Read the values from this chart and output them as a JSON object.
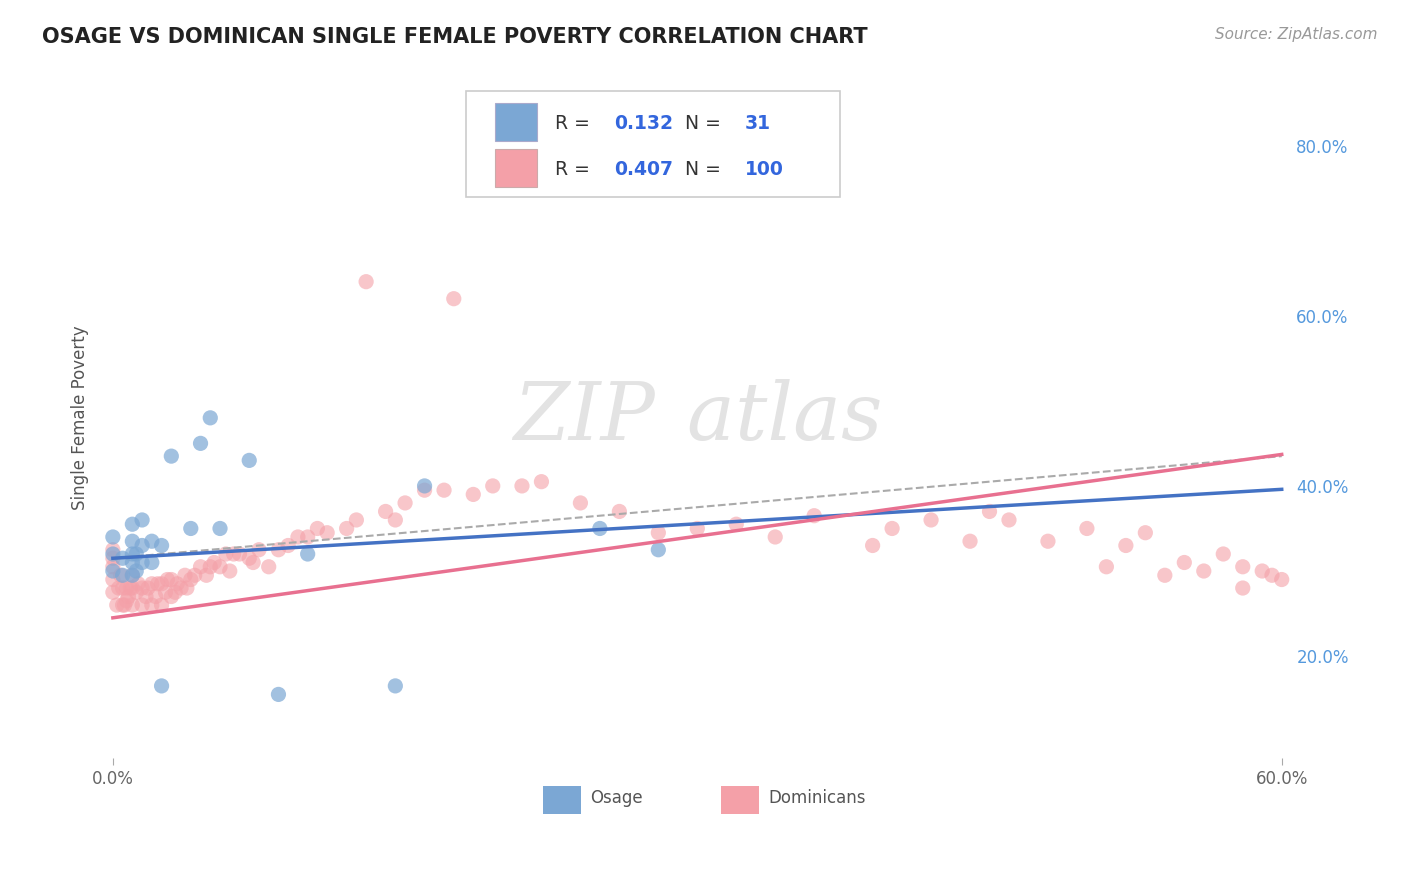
{
  "title": "OSAGE VS DOMINICAN SINGLE FEMALE POVERTY CORRELATION CHART",
  "source_text": "Source: ZipAtlas.com",
  "ylabel": "Single Female Poverty",
  "xlim": [
    -0.005,
    0.605
  ],
  "ylim": [
    0.08,
    0.88
  ],
  "yticks_right": [
    0.2,
    0.4,
    0.6,
    0.8
  ],
  "yticklabels_right": [
    "20.0%",
    "40.0%",
    "60.0%",
    "80.0%"
  ],
  "osage_color": "#7BA7D4",
  "dominican_color": "#F4A0A8",
  "background_color": "#FFFFFF",
  "grid_color": "#CCCCCC",
  "osage_R": 0.132,
  "osage_N": 31,
  "dominican_R": 0.407,
  "dominican_N": 100,
  "osage_line_intercept": 0.315,
  "osage_line_slope": 0.135,
  "dominican_line_intercept": 0.245,
  "dominican_line_slope": 0.32,
  "dashed_line_intercept": 0.315,
  "dashed_line_slope": 0.2,
  "trend_blue": "#4472C4",
  "trend_pink": "#E87090",
  "trend_dash": "#AAAAAA",
  "osage_x": [
    0.0,
    0.0,
    0.0,
    0.005,
    0.005,
    0.01,
    0.01,
    0.01,
    0.01,
    0.01,
    0.012,
    0.012,
    0.015,
    0.015,
    0.015,
    0.02,
    0.02,
    0.025,
    0.025,
    0.03,
    0.04,
    0.045,
    0.05,
    0.055,
    0.07,
    0.085,
    0.1,
    0.145,
    0.16,
    0.25,
    0.28
  ],
  "osage_y": [
    0.3,
    0.32,
    0.34,
    0.295,
    0.315,
    0.295,
    0.31,
    0.32,
    0.335,
    0.355,
    0.3,
    0.32,
    0.31,
    0.33,
    0.36,
    0.31,
    0.335,
    0.165,
    0.33,
    0.435,
    0.35,
    0.45,
    0.48,
    0.35,
    0.43,
    0.155,
    0.32,
    0.165,
    0.4,
    0.35,
    0.325
  ],
  "dominican_x": [
    0.0,
    0.0,
    0.0,
    0.0,
    0.0,
    0.002,
    0.003,
    0.004,
    0.005,
    0.005,
    0.006,
    0.007,
    0.007,
    0.008,
    0.009,
    0.01,
    0.01,
    0.01,
    0.012,
    0.013,
    0.015,
    0.015,
    0.017,
    0.018,
    0.02,
    0.02,
    0.022,
    0.023,
    0.025,
    0.025,
    0.027,
    0.028,
    0.03,
    0.03,
    0.032,
    0.033,
    0.035,
    0.037,
    0.038,
    0.04,
    0.042,
    0.045,
    0.048,
    0.05,
    0.052,
    0.055,
    0.058,
    0.06,
    0.062,
    0.065,
    0.07,
    0.072,
    0.075,
    0.08,
    0.085,
    0.09,
    0.095,
    0.1,
    0.105,
    0.11,
    0.12,
    0.125,
    0.13,
    0.14,
    0.145,
    0.15,
    0.16,
    0.17,
    0.175,
    0.185,
    0.195,
    0.21,
    0.22,
    0.24,
    0.26,
    0.28,
    0.3,
    0.32,
    0.34,
    0.36,
    0.39,
    0.4,
    0.42,
    0.44,
    0.45,
    0.46,
    0.48,
    0.5,
    0.51,
    0.52,
    0.53,
    0.54,
    0.55,
    0.56,
    0.57,
    0.58,
    0.58,
    0.59,
    0.595,
    0.6
  ],
  "dominican_y": [
    0.275,
    0.29,
    0.305,
    0.315,
    0.325,
    0.26,
    0.28,
    0.295,
    0.26,
    0.28,
    0.26,
    0.265,
    0.28,
    0.27,
    0.28,
    0.26,
    0.28,
    0.295,
    0.275,
    0.285,
    0.26,
    0.28,
    0.27,
    0.28,
    0.26,
    0.285,
    0.27,
    0.285,
    0.26,
    0.285,
    0.275,
    0.29,
    0.27,
    0.29,
    0.275,
    0.285,
    0.28,
    0.295,
    0.28,
    0.29,
    0.295,
    0.305,
    0.295,
    0.305,
    0.31,
    0.305,
    0.32,
    0.3,
    0.32,
    0.32,
    0.315,
    0.31,
    0.325,
    0.305,
    0.325,
    0.33,
    0.34,
    0.34,
    0.35,
    0.345,
    0.35,
    0.36,
    0.64,
    0.37,
    0.36,
    0.38,
    0.395,
    0.395,
    0.62,
    0.39,
    0.4,
    0.4,
    0.405,
    0.38,
    0.37,
    0.345,
    0.35,
    0.355,
    0.34,
    0.365,
    0.33,
    0.35,
    0.36,
    0.335,
    0.37,
    0.36,
    0.335,
    0.35,
    0.305,
    0.33,
    0.345,
    0.295,
    0.31,
    0.3,
    0.32,
    0.305,
    0.28,
    0.3,
    0.295,
    0.29
  ]
}
